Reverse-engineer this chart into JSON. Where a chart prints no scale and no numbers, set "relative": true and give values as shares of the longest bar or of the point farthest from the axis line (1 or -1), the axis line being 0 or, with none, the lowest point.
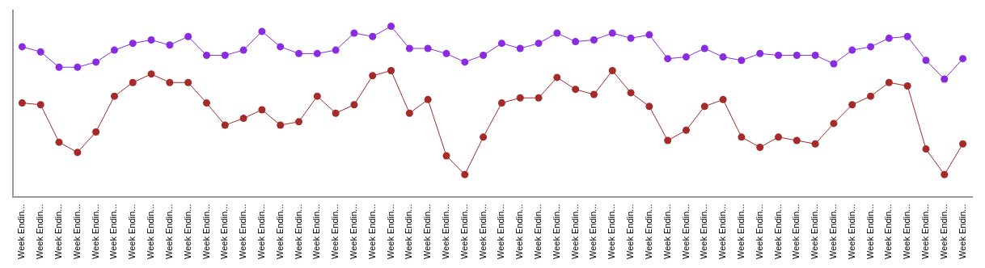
{
  "chart_data": {
    "type": "line",
    "relative": true,
    "grid": false,
    "legend": false,
    "marker": "circle",
    "line_style": "solid",
    "categories": [
      "Week Endin...",
      "Week Endin...",
      "Week Endin...",
      "Week Endin...",
      "Week Endin...",
      "Week Endin...",
      "Week Endin...",
      "Week Endin...",
      "Week Endin...",
      "Week Endin...",
      "Week Endin...",
      "Week Endin...",
      "Week Endin...",
      "Week Endin...",
      "Week Endin...",
      "Week Endin...",
      "Week Endin...",
      "Week Endin...",
      "Week Endin...",
      "Week Endin...",
      "Week Endin...",
      "Week Endin...",
      "Week Endin...",
      "Week Endin...",
      "Week Endin...",
      "Week Endin...",
      "Week Endin...",
      "Week Endin...",
      "Week Endin...",
      "Week Endin...",
      "Week Endin...",
      "Week Endin...",
      "Week Endin...",
      "Week Endin...",
      "Week Endin...",
      "Week Endin...",
      "Week Endin...",
      "Week Endin...",
      "Week Endin...",
      "Week Endin...",
      "Week Endin...",
      "Week Endin...",
      "Week Endin...",
      "Week Endin...",
      "Week Endin...",
      "Week Endin...",
      "Week Endin...",
      "Week Endin...",
      "Week Endin...",
      "Week Endin...",
      "Week Endin...",
      "Week Endin..."
    ],
    "series": [
      {
        "color": "#8a2be2",
        "values": [
          0.88,
          0.85,
          0.76,
          0.76,
          0.79,
          0.86,
          0.9,
          0.92,
          0.89,
          0.94,
          0.83,
          0.83,
          0.86,
          0.97,
          0.88,
          0.84,
          0.84,
          0.86,
          0.96,
          0.94,
          1,
          0.87,
          0.87,
          0.84,
          0.79,
          0.83,
          0.9,
          0.87,
          0.9,
          0.96,
          0.91,
          0.92,
          0.96,
          0.93,
          0.95,
          0.81,
          0.82,
          0.87,
          0.82,
          0.8,
          0.84,
          0.83,
          0.83,
          0.83,
          0.78,
          0.86,
          0.88,
          0.93,
          0.94,
          0.8,
          0.69,
          0.81
        ]
      },
      {
        "color": "#a52a2a",
        "values": [
          0.55,
          0.54,
          0.32,
          0.26,
          0.38,
          0.59,
          0.67,
          0.72,
          0.67,
          0.67,
          0.55,
          0.42,
          0.46,
          0.51,
          0.42,
          0.44,
          0.59,
          0.49,
          0.54,
          0.71,
          0.74,
          0.49,
          0.57,
          0.24,
          0.13,
          0.35,
          0.55,
          0.58,
          0.58,
          0.7,
          0.63,
          0.6,
          0.74,
          0.61,
          0.53,
          0.33,
          0.39,
          0.53,
          0.57,
          0.35,
          0.29,
          0.35,
          0.33,
          0.31,
          0.43,
          0.54,
          0.59,
          0.67,
          0.65,
          0.28,
          0.13,
          0.31
        ]
      }
    ]
  }
}
